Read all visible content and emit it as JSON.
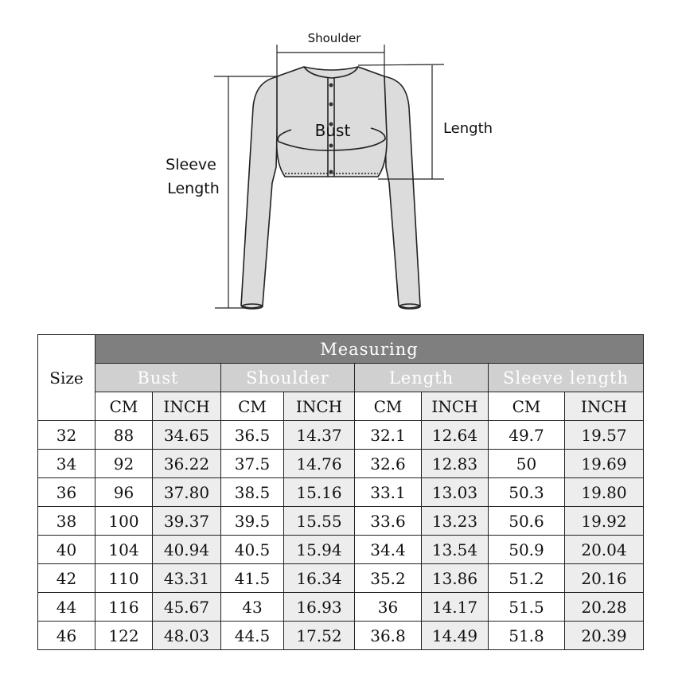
{
  "diagram": {
    "labels": {
      "shoulder": "Shoulder",
      "bust": "Bust",
      "length": "Length",
      "sleeve_line1": "Sleeve",
      "sleeve_line2": "Length"
    }
  },
  "table": {
    "title": "Measuring",
    "size_header": "Size",
    "groups": [
      "Bust",
      "Shoulder",
      "Length",
      "Sleeve length"
    ],
    "units": [
      "CM",
      "INCH",
      "CM",
      "INCH",
      "CM",
      "INCH",
      "CM",
      "INCH"
    ],
    "rows": [
      [
        "32",
        "88",
        "34.65",
        "36.5",
        "14.37",
        "32.1",
        "12.64",
        "49.7",
        "19.57"
      ],
      [
        "34",
        "92",
        "36.22",
        "37.5",
        "14.76",
        "32.6",
        "12.83",
        "50",
        "19.69"
      ],
      [
        "36",
        "96",
        "37.80",
        "38.5",
        "15.16",
        "33.1",
        "13.03",
        "50.3",
        "19.80"
      ],
      [
        "38",
        "100",
        "39.37",
        "39.5",
        "15.55",
        "33.6",
        "13.23",
        "50.6",
        "19.92"
      ],
      [
        "40",
        "104",
        "40.94",
        "40.5",
        "15.94",
        "34.4",
        "13.54",
        "50.9",
        "20.04"
      ],
      [
        "42",
        "110",
        "43.31",
        "41.5",
        "16.34",
        "35.2",
        "13.86",
        "51.2",
        "20.16"
      ],
      [
        "44",
        "116",
        "45.67",
        "43",
        "16.93",
        "36",
        "14.17",
        "51.5",
        "20.28"
      ],
      [
        "46",
        "122",
        "48.03",
        "44.5",
        "17.52",
        "36.8",
        "14.49",
        "51.8",
        "20.39"
      ]
    ]
  },
  "colors": {
    "title_bg": "#7f7f7f",
    "group_bg": "#d0d0d0",
    "inch_bg": "#ededed",
    "garment_fill": "#dcdcdc"
  }
}
